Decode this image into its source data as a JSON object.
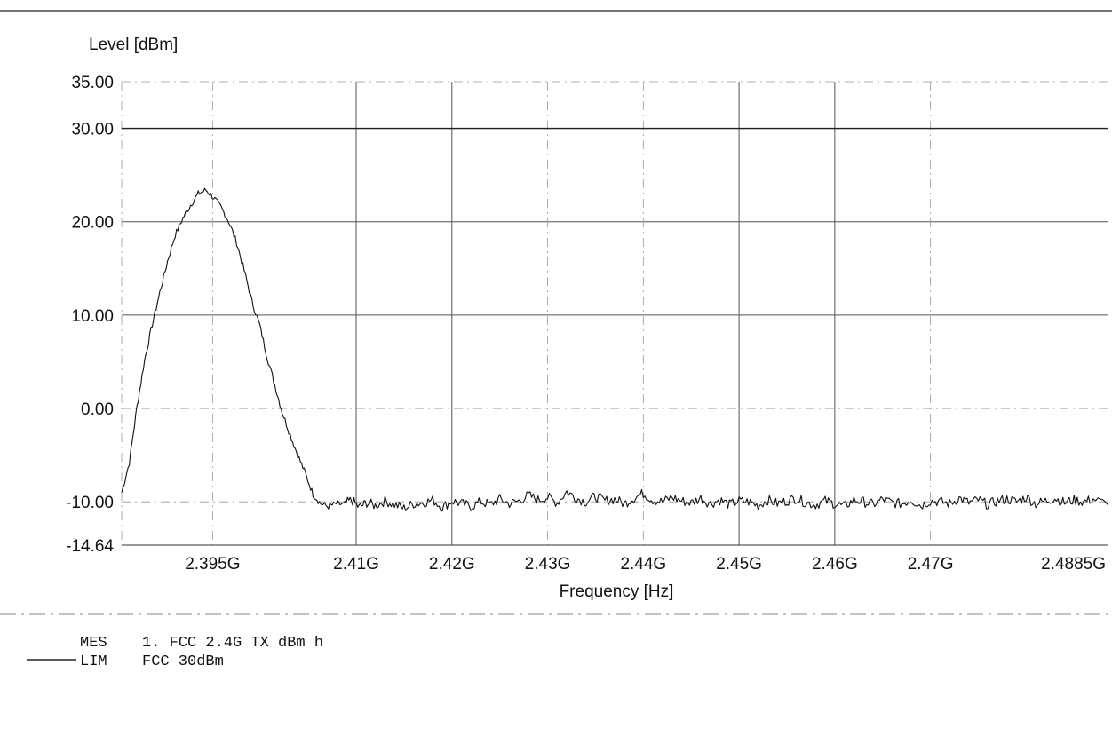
{
  "chart_data": {
    "type": "line",
    "ylabel": "Level [dBm]",
    "xlabel": "Frequency [Hz]",
    "xlim": [
      2.3855,
      2.4885
    ],
    "ylim": [
      -14.64,
      35.0
    ],
    "y_ticks": [
      {
        "value": 35.0,
        "label": "35.00"
      },
      {
        "value": 30.0,
        "label": "30.00"
      },
      {
        "value": 20.0,
        "label": "20.00"
      },
      {
        "value": 10.0,
        "label": "10.00"
      },
      {
        "value": 0.0,
        "label": "0.00"
      },
      {
        "value": -10.0,
        "label": "-10.00"
      },
      {
        "value": -14.64,
        "label": "-14.64"
      }
    ],
    "x_ticks": [
      {
        "value": 2.395,
        "label": "2.395G"
      },
      {
        "value": 2.41,
        "label": "2.41G"
      },
      {
        "value": 2.42,
        "label": "2.42G"
      },
      {
        "value": 2.43,
        "label": "2.43G"
      },
      {
        "value": 2.44,
        "label": "2.44G"
      },
      {
        "value": 2.45,
        "label": "2.45G"
      },
      {
        "value": 2.46,
        "label": "2.46G"
      },
      {
        "value": 2.47,
        "label": "2.47G"
      },
      {
        "value": 2.4885,
        "label": "2.4885G"
      }
    ],
    "grid": true,
    "series": [
      {
        "name": "1. FCC 2.4G TX dBm h",
        "x": [
          2.3855,
          2.3863,
          2.3871,
          2.3879,
          2.3887,
          2.3895,
          2.3903,
          2.3911,
          2.3919,
          2.3927,
          2.3935,
          2.3943,
          2.3951,
          2.3959,
          2.3967,
          2.3975,
          2.3983,
          2.3991,
          2.3999,
          2.4007,
          2.4015,
          2.4023,
          2.4031,
          2.4039,
          2.4047,
          2.4055,
          2.4063,
          2.4071,
          2.4079,
          2.4087,
          2.4095,
          2.4103,
          2.4111,
          2.412,
          2.413,
          2.414,
          2.415,
          2.416,
          2.417,
          2.418,
          2.419,
          2.42,
          2.421,
          2.422,
          2.423,
          2.424,
          2.425,
          2.426,
          2.427,
          2.428,
          2.429,
          2.43,
          2.431,
          2.432,
          2.433,
          2.434,
          2.435,
          2.436,
          2.437,
          2.438,
          2.439,
          2.44,
          2.441,
          2.442,
          2.443,
          2.444,
          2.445,
          2.446,
          2.447,
          2.448,
          2.449,
          2.45,
          2.451,
          2.452,
          2.453,
          2.454,
          2.455,
          2.456,
          2.457,
          2.458,
          2.459,
          2.46,
          2.461,
          2.462,
          2.463,
          2.464,
          2.465,
          2.466,
          2.467,
          2.468,
          2.469,
          2.47,
          2.471,
          2.472,
          2.473,
          2.474,
          2.475,
          2.476,
          2.477,
          2.478,
          2.479,
          2.48,
          2.481,
          2.482,
          2.483,
          2.484,
          2.485,
          2.486,
          2.487,
          2.4885
        ],
        "y": [
          -9.0,
          -5.8,
          0.2,
          5.2,
          9.0,
          12.5,
          15.8,
          18.6,
          20.4,
          21.8,
          23.0,
          23.4,
          22.6,
          21.5,
          20.0,
          17.8,
          14.8,
          11.5,
          9.0,
          5.5,
          2.5,
          -0.5,
          -2.8,
          -5.0,
          -7.0,
          -9.2,
          -10.2,
          -10.5,
          -10.2,
          -10.3,
          -9.8,
          -10.6,
          -10.1,
          -10.4,
          -9.9,
          -10.3,
          -10.7,
          -10.2,
          -10.1,
          -9.8,
          -10.6,
          -9.9,
          -10.2,
          -10.5,
          -10.0,
          -10.3,
          -9.7,
          -10.2,
          -9.9,
          -9.3,
          -9.8,
          -9.5,
          -10.1,
          -8.9,
          -9.6,
          -10.0,
          -9.4,
          -9.9,
          -9.7,
          -10.2,
          -9.6,
          -9.1,
          -9.8,
          -10.0,
          -9.5,
          -9.9,
          -10.1,
          -9.6,
          -10.2,
          -9.8,
          -10.3,
          -9.9,
          -10.0,
          -10.4,
          -9.8,
          -10.2,
          -9.9,
          -9.6,
          -10.1,
          -10.3,
          -9.9,
          -10.2,
          -10.5,
          -9.8,
          -10.0,
          -10.3,
          -9.7,
          -10.1,
          -10.2,
          -9.8,
          -10.4,
          -9.9,
          -10.0,
          -10.2,
          -9.6,
          -10.1,
          -9.8,
          -10.3,
          -9.9,
          -9.7,
          -10.0,
          -9.5,
          -10.2,
          -9.9,
          -9.6,
          -10.1,
          -9.8,
          -10.0,
          -9.7,
          -10.3
        ]
      }
    ],
    "limit_line": {
      "y": 30.0
    },
    "legend": [
      {
        "key": "MES",
        "text": "1. FCC 2.4G TX dBm h"
      },
      {
        "key": "LIM",
        "text": "FCC 30dBm"
      }
    ]
  }
}
